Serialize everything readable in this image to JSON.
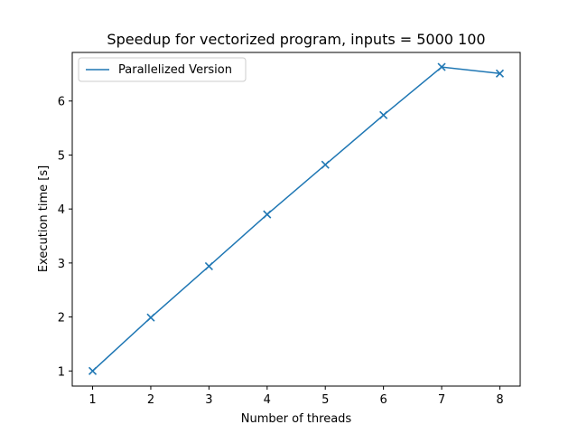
{
  "chart_data": {
    "type": "line",
    "title": "Speedup for vectorized program, inputs = 5000 100",
    "xlabel": "Number of threads",
    "ylabel": "Execution time [s]",
    "x": [
      1,
      2,
      3,
      4,
      5,
      6,
      7,
      8
    ],
    "xticks": [
      "1",
      "2",
      "3",
      "4",
      "5",
      "6",
      "7",
      "8"
    ],
    "yticks": [
      "1",
      "2",
      "3",
      "4",
      "5",
      "6"
    ],
    "xlim": [
      0.65,
      8.35
    ],
    "ylim": [
      0.72,
      6.9
    ],
    "grid": false,
    "legend_position": "top-left",
    "series": [
      {
        "name": "Parallelized Version",
        "color": "#1f77b4",
        "marker": "x",
        "values": [
          1.0,
          1.99,
          2.94,
          3.9,
          4.82,
          5.74,
          6.63,
          6.51
        ]
      }
    ]
  }
}
